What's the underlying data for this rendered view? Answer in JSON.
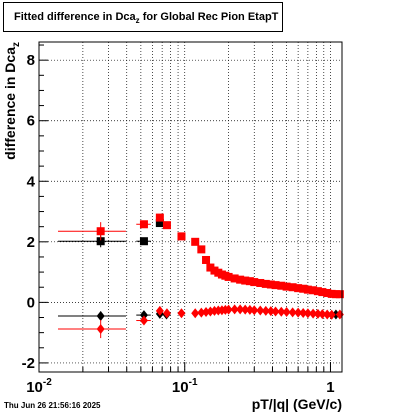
{
  "title": {
    "prefix": "Fitted difference in Dca",
    "subscript": "z",
    "suffix": " for Global Rec Pion EtapT"
  },
  "footer": "Thu Jun 26 21:56:16 2025",
  "chart_data": {
    "type": "scatter",
    "xlabel": "pT/|q| (GeV/c)",
    "ylabel_main": "difference in Dca",
    "ylabel_sub": "z",
    "xscale": "log",
    "xlim": [
      0.01,
      1.2
    ],
    "ylim": [
      -2.3,
      8.6
    ],
    "grid": true,
    "x_ticks": [
      {
        "value": 0.01,
        "base": "10",
        "exp": "-2"
      },
      {
        "value": 0.1,
        "base": "10",
        "exp": "-1"
      },
      {
        "value": 1,
        "base": "1",
        "exp": ""
      }
    ],
    "y_ticks": [
      -2,
      0,
      2,
      4,
      6,
      8
    ],
    "series": [
      {
        "color": "#000000",
        "marker": "square",
        "points": [
          {
            "x": 0.0265,
            "y": 2.02,
            "xlo": 0.0135,
            "xhi": 0.0395,
            "yerr": 0.2
          },
          {
            "x": 0.0525,
            "y": 2.02,
            "xlo": 0.0465,
            "xhi": 0.0585,
            "yerr": 0.05
          },
          {
            "x": 0.0675,
            "y": 2.62,
            "xlo": 0.0645,
            "xhi": 0.0705,
            "yerr": 0.05
          }
        ]
      },
      {
        "color": "#000000",
        "marker": "diamond",
        "points": [
          {
            "x": 0.0265,
            "y": -0.45,
            "xlo": 0.0135,
            "xhi": 0.0395,
            "yerr": 0.15
          },
          {
            "x": 0.0525,
            "y": -0.42,
            "xlo": 0.0465,
            "xhi": 0.0585,
            "yerr": 0.05
          },
          {
            "x": 0.0675,
            "y": -0.38,
            "xlo": 0.0645,
            "xhi": 0.0705,
            "yerr": 0.05
          },
          {
            "x": 0.075,
            "y": -0.4,
            "xlo": 0.072,
            "xhi": 0.078,
            "yerr": 0.05
          },
          {
            "x": 1.09,
            "y": -0.4,
            "xlo": 1.06,
            "xhi": 1.12,
            "yerr": 0.05
          }
        ]
      },
      {
        "color": "#ff0000",
        "marker": "square",
        "points": [
          {
            "x": 0.0265,
            "y": 2.35,
            "xlo": 0.0135,
            "xhi": 0.0395,
            "yerr": 0.3
          },
          {
            "x": 0.0525,
            "y": 2.58,
            "xlo": 0.0465,
            "xhi": 0.0585,
            "yerr": 0.1
          },
          {
            "x": 0.0675,
            "y": 2.8,
            "xlo": 0.0645,
            "xhi": 0.0705,
            "yerr": 0.1
          },
          {
            "x": 0.0755,
            "y": 2.55,
            "xlo": 0.0725,
            "xhi": 0.0785,
            "yerr": 0.08
          },
          {
            "x": 0.095,
            "y": 2.18,
            "xlo": 0.09,
            "xhi": 0.1,
            "yerr": 0.05
          },
          {
            "x": 0.118,
            "y": 2.0,
            "xlo": 0.115,
            "xhi": 0.121,
            "yerr": 0.04
          },
          {
            "x": 0.13,
            "y": 1.75,
            "xlo": 0.127,
            "xhi": 0.133,
            "yerr": 0.04
          },
          {
            "x": 0.14,
            "y": 1.4,
            "xlo": 0.137,
            "xhi": 0.143,
            "yerr": 0.04
          },
          {
            "x": 0.15,
            "y": 1.15,
            "xlo": 0.147,
            "xhi": 0.153,
            "yerr": 0.03
          },
          {
            "x": 0.16,
            "y": 1.05,
            "xlo": 0.157,
            "xhi": 0.163,
            "yerr": 0.03
          },
          {
            "x": 0.17,
            "y": 0.98,
            "xlo": 0.167,
            "xhi": 0.173,
            "yerr": 0.03
          },
          {
            "x": 0.18,
            "y": 0.92,
            "xlo": 0.177,
            "xhi": 0.183,
            "yerr": 0.03
          },
          {
            "x": 0.19,
            "y": 0.88,
            "xlo": 0.187,
            "xhi": 0.193,
            "yerr": 0.03
          },
          {
            "x": 0.2,
            "y": 0.84,
            "xlo": 0.197,
            "xhi": 0.203,
            "yerr": 0.03
          },
          {
            "x": 0.22,
            "y": 0.79,
            "xlo": 0.215,
            "xhi": 0.225,
            "yerr": 0.03
          },
          {
            "x": 0.24,
            "y": 0.75,
            "xlo": 0.235,
            "xhi": 0.245,
            "yerr": 0.03
          },
          {
            "x": 0.26,
            "y": 0.72,
            "xlo": 0.255,
            "xhi": 0.265,
            "yerr": 0.03
          },
          {
            "x": 0.28,
            "y": 0.7,
            "xlo": 0.275,
            "xhi": 0.285,
            "yerr": 0.03
          },
          {
            "x": 0.3,
            "y": 0.67,
            "xlo": 0.295,
            "xhi": 0.305,
            "yerr": 0.03
          },
          {
            "x": 0.33,
            "y": 0.64,
            "xlo": 0.32,
            "xhi": 0.34,
            "yerr": 0.03
          },
          {
            "x": 0.36,
            "y": 0.61,
            "xlo": 0.35,
            "xhi": 0.37,
            "yerr": 0.03
          },
          {
            "x": 0.39,
            "y": 0.59,
            "xlo": 0.38,
            "xhi": 0.4,
            "yerr": 0.03
          },
          {
            "x": 0.42,
            "y": 0.57,
            "xlo": 0.41,
            "xhi": 0.43,
            "yerr": 0.03
          },
          {
            "x": 0.46,
            "y": 0.55,
            "xlo": 0.45,
            "xhi": 0.47,
            "yerr": 0.03
          },
          {
            "x": 0.5,
            "y": 0.52,
            "xlo": 0.49,
            "xhi": 0.51,
            "yerr": 0.03
          },
          {
            "x": 0.55,
            "y": 0.5,
            "xlo": 0.53,
            "xhi": 0.57,
            "yerr": 0.03
          },
          {
            "x": 0.6,
            "y": 0.47,
            "xlo": 0.58,
            "xhi": 0.62,
            "yerr": 0.03
          },
          {
            "x": 0.65,
            "y": 0.45,
            "xlo": 0.63,
            "xhi": 0.67,
            "yerr": 0.03
          },
          {
            "x": 0.7,
            "y": 0.42,
            "xlo": 0.68,
            "xhi": 0.72,
            "yerr": 0.03
          },
          {
            "x": 0.76,
            "y": 0.4,
            "xlo": 0.74,
            "xhi": 0.78,
            "yerr": 0.03
          },
          {
            "x": 0.82,
            "y": 0.37,
            "xlo": 0.8,
            "xhi": 0.84,
            "yerr": 0.03
          },
          {
            "x": 0.88,
            "y": 0.34,
            "xlo": 0.86,
            "xhi": 0.9,
            "yerr": 0.03
          },
          {
            "x": 0.95,
            "y": 0.31,
            "xlo": 0.93,
            "xhi": 0.97,
            "yerr": 0.03
          },
          {
            "x": 1.02,
            "y": 0.28,
            "xlo": 1.0,
            "xhi": 1.04,
            "yerr": 0.03
          },
          {
            "x": 1.09,
            "y": 0.27,
            "xlo": 1.06,
            "xhi": 1.12,
            "yerr": 0.03
          },
          {
            "x": 1.16,
            "y": 0.27,
            "xlo": 1.13,
            "xhi": 1.19,
            "yerr": 0.03
          }
        ]
      },
      {
        "color": "#ff0000",
        "marker": "diamond",
        "points": [
          {
            "x": 0.0265,
            "y": -0.88,
            "xlo": 0.0135,
            "xhi": 0.0395,
            "yerr": 0.3
          },
          {
            "x": 0.0525,
            "y": -0.6,
            "xlo": 0.0465,
            "xhi": 0.0585,
            "yerr": 0.08
          },
          {
            "x": 0.0675,
            "y": -0.28,
            "xlo": 0.0645,
            "xhi": 0.0705,
            "yerr": 0.06
          },
          {
            "x": 0.0755,
            "y": -0.36,
            "xlo": 0.0725,
            "xhi": 0.0785,
            "yerr": 0.05
          },
          {
            "x": 0.095,
            "y": -0.36,
            "xlo": 0.09,
            "xhi": 0.1,
            "yerr": 0.04
          },
          {
            "x": 0.118,
            "y": -0.36,
            "xlo": 0.115,
            "xhi": 0.121,
            "yerr": 0.04
          },
          {
            "x": 0.13,
            "y": -0.34,
            "xlo": 0.127,
            "xhi": 0.133,
            "yerr": 0.03
          },
          {
            "x": 0.14,
            "y": -0.32,
            "xlo": 0.137,
            "xhi": 0.143,
            "yerr": 0.03
          },
          {
            "x": 0.15,
            "y": -0.3,
            "xlo": 0.147,
            "xhi": 0.153,
            "yerr": 0.03
          },
          {
            "x": 0.16,
            "y": -0.28,
            "xlo": 0.157,
            "xhi": 0.163,
            "yerr": 0.03
          },
          {
            "x": 0.17,
            "y": -0.27,
            "xlo": 0.167,
            "xhi": 0.173,
            "yerr": 0.03
          },
          {
            "x": 0.18,
            "y": -0.26,
            "xlo": 0.177,
            "xhi": 0.183,
            "yerr": 0.03
          },
          {
            "x": 0.19,
            "y": -0.25,
            "xlo": 0.187,
            "xhi": 0.193,
            "yerr": 0.03
          },
          {
            "x": 0.2,
            "y": -0.24,
            "xlo": 0.197,
            "xhi": 0.203,
            "yerr": 0.03
          },
          {
            "x": 0.22,
            "y": -0.23,
            "xlo": 0.215,
            "xhi": 0.225,
            "yerr": 0.03
          },
          {
            "x": 0.24,
            "y": -0.23,
            "xlo": 0.235,
            "xhi": 0.245,
            "yerr": 0.03
          },
          {
            "x": 0.26,
            "y": -0.24,
            "xlo": 0.255,
            "xhi": 0.265,
            "yerr": 0.03
          },
          {
            "x": 0.28,
            "y": -0.25,
            "xlo": 0.275,
            "xhi": 0.285,
            "yerr": 0.03
          },
          {
            "x": 0.3,
            "y": -0.26,
            "xlo": 0.295,
            "xhi": 0.305,
            "yerr": 0.03
          },
          {
            "x": 0.33,
            "y": -0.27,
            "xlo": 0.32,
            "xhi": 0.34,
            "yerr": 0.03
          },
          {
            "x": 0.36,
            "y": -0.28,
            "xlo": 0.35,
            "xhi": 0.37,
            "yerr": 0.03
          },
          {
            "x": 0.39,
            "y": -0.29,
            "xlo": 0.38,
            "xhi": 0.4,
            "yerr": 0.03
          },
          {
            "x": 0.42,
            "y": -0.3,
            "xlo": 0.41,
            "xhi": 0.43,
            "yerr": 0.03
          },
          {
            "x": 0.46,
            "y": -0.31,
            "xlo": 0.45,
            "xhi": 0.47,
            "yerr": 0.03
          },
          {
            "x": 0.5,
            "y": -0.32,
            "xlo": 0.49,
            "xhi": 0.51,
            "yerr": 0.03
          },
          {
            "x": 0.55,
            "y": -0.33,
            "xlo": 0.53,
            "xhi": 0.57,
            "yerr": 0.03
          },
          {
            "x": 0.6,
            "y": -0.34,
            "xlo": 0.58,
            "xhi": 0.62,
            "yerr": 0.03
          },
          {
            "x": 0.65,
            "y": -0.35,
            "xlo": 0.63,
            "xhi": 0.67,
            "yerr": 0.03
          },
          {
            "x": 0.7,
            "y": -0.36,
            "xlo": 0.68,
            "xhi": 0.72,
            "yerr": 0.03
          },
          {
            "x": 0.76,
            "y": -0.37,
            "xlo": 0.74,
            "xhi": 0.78,
            "yerr": 0.03
          },
          {
            "x": 0.82,
            "y": -0.38,
            "xlo": 0.8,
            "xhi": 0.84,
            "yerr": 0.03
          },
          {
            "x": 0.88,
            "y": -0.39,
            "xlo": 0.86,
            "xhi": 0.9,
            "yerr": 0.03
          },
          {
            "x": 0.95,
            "y": -0.4,
            "xlo": 0.93,
            "xhi": 0.97,
            "yerr": 0.03
          },
          {
            "x": 1.02,
            "y": -0.41,
            "xlo": 1.0,
            "xhi": 1.04,
            "yerr": 0.03
          },
          {
            "x": 1.16,
            "y": -0.4,
            "xlo": 1.13,
            "xhi": 1.19,
            "yerr": 0.03
          }
        ]
      }
    ]
  }
}
